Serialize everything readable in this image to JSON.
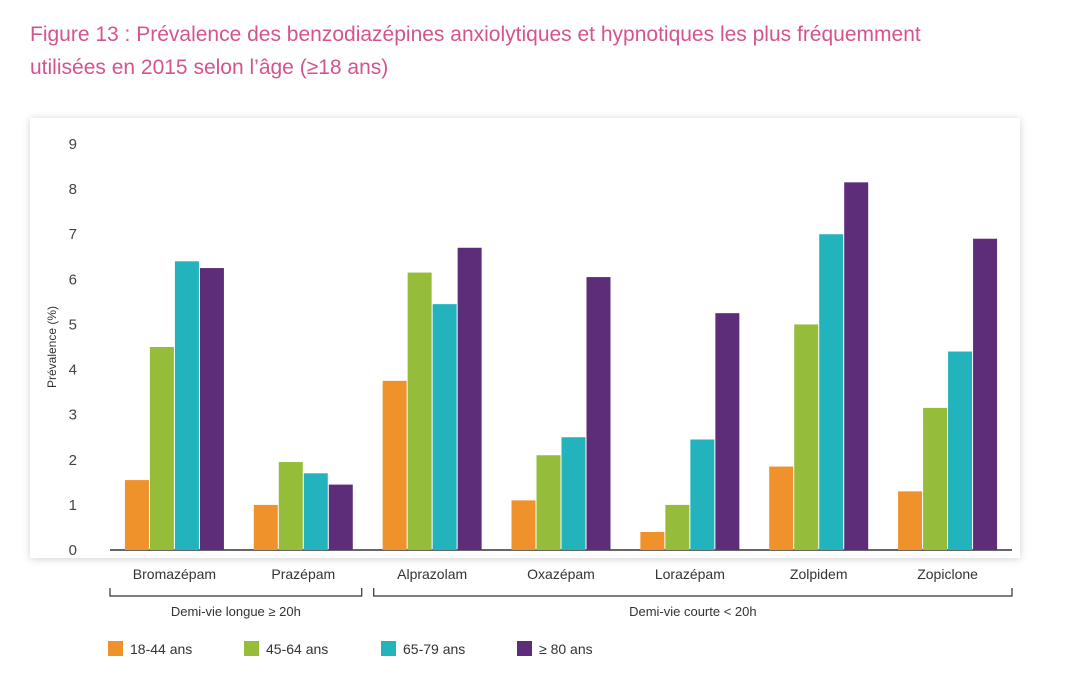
{
  "figure": {
    "title_line1": "Figure 13 : Prévalence des benzodiazépines anxiolytiques et hypnotiques les plus fréquemment",
    "title_line2": "utilisées en 2015 selon l’âge (≥18 ans)"
  },
  "chart_data": {
    "type": "bar",
    "title": "Figure 13 : Prévalence des benzodiazépines anxiolytiques et hypnotiques les plus fréquemment utilisées en 2015 selon l’âge (≥18 ans)",
    "xlabel": "",
    "ylabel": "Prévalence (%)",
    "ylim": [
      0,
      9
    ],
    "yticks": [
      0,
      1,
      2,
      3,
      4,
      5,
      6,
      7,
      8,
      9
    ],
    "grid": false,
    "legend_position": "bottom",
    "categories": [
      "Bromazépam",
      "Prazépam",
      "Alprazolam",
      "Oxazépam",
      "Lorazépam",
      "Zolpidem",
      "Zopiclone"
    ],
    "category_groups": [
      {
        "label": "Demi-vie longue ≥ 20h",
        "categories": [
          "Bromazépam",
          "Prazépam"
        ]
      },
      {
        "label": "Demi-vie courte < 20h",
        "categories": [
          "Alprazolam",
          "Oxazépam",
          "Lorazépam",
          "Zolpidem",
          "Zopiclone"
        ]
      }
    ],
    "series": [
      {
        "name": "18-44 ans",
        "color": "#f0922b",
        "values": [
          1.55,
          1.0,
          3.75,
          1.1,
          0.4,
          1.85,
          1.3
        ]
      },
      {
        "name": "45-64 ans",
        "color": "#95bd3a",
        "values": [
          4.5,
          1.95,
          6.15,
          2.1,
          1.0,
          5.0,
          3.15
        ]
      },
      {
        "name": "65-79 ans",
        "color": "#22b3bd",
        "values": [
          6.4,
          1.7,
          5.45,
          2.5,
          2.45,
          7.0,
          4.4
        ]
      },
      {
        "name": "≥ 80 ans",
        "color": "#5e2d79",
        "values": [
          6.25,
          1.45,
          6.7,
          6.05,
          5.25,
          8.15,
          6.9
        ]
      }
    ]
  }
}
